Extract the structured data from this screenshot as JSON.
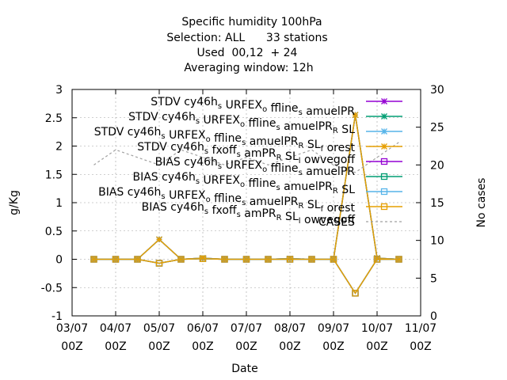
{
  "chart_data": {
    "type": "line",
    "title_lines": [
      "Specific humidity 100hPa",
      "Selection: ALL      33 stations",
      "Used  00,12  + 24",
      "Averaging window: 12h"
    ],
    "xlabel": "Date",
    "ylabel": "g/Kg",
    "y2label": "No cases",
    "ylim": [
      -1,
      3
    ],
    "y2lim": [
      0,
      30
    ],
    "grid": true,
    "legend_position": "top-right",
    "x_ticks": [
      {
        "pos": 0,
        "line1": "03/07",
        "line2": "00Z"
      },
      {
        "pos": 1,
        "line1": "04/07",
        "line2": "00Z"
      },
      {
        "pos": 2,
        "line1": "05/07",
        "line2": "00Z"
      },
      {
        "pos": 3,
        "line1": "06/07",
        "line2": "00Z"
      },
      {
        "pos": 4,
        "line1": "07/07",
        "line2": "00Z"
      },
      {
        "pos": 5,
        "line1": "08/07",
        "line2": "00Z"
      },
      {
        "pos": 6,
        "line1": "09/07",
        "line2": "00Z"
      },
      {
        "pos": 7,
        "line1": "10/07",
        "line2": "00Z"
      },
      {
        "pos": 8,
        "line1": "11/07",
        "line2": "00Z"
      }
    ],
    "y_ticks": [
      {
        "value": -1,
        "label": "-1"
      },
      {
        "value": -0.5,
        "label": "-0.5"
      },
      {
        "value": 0,
        "label": "0"
      },
      {
        "value": 0.5,
        "label": "0.5"
      },
      {
        "value": 1,
        "label": "1"
      },
      {
        "value": 1.5,
        "label": "1.5"
      },
      {
        "value": 2,
        "label": "2"
      },
      {
        "value": 2.5,
        "label": "2.5"
      },
      {
        "value": 3,
        "label": "3"
      }
    ],
    "y2_ticks": [
      {
        "value": 0,
        "label": "0"
      },
      {
        "value": 5,
        "label": "5"
      },
      {
        "value": 10,
        "label": "10"
      },
      {
        "value": 15,
        "label": "15"
      },
      {
        "value": 20,
        "label": "20"
      },
      {
        "value": 25,
        "label": "25"
      },
      {
        "value": 30,
        "label": "30"
      }
    ],
    "x": [
      0.5,
      1.0,
      1.5,
      2.0,
      2.5,
      3.0,
      3.5,
      4.0,
      4.5,
      5.0,
      5.5,
      6.0,
      6.5,
      7.0,
      7.5
    ],
    "series": [
      {
        "name": "STDV cy46h_s URFEX_o ffline_s amuelPR",
        "color": "#9400d3",
        "marker": "x-star",
        "axis": "y",
        "values": [
          0,
          0,
          0,
          0.35,
          0,
          0.02,
          0,
          0,
          0,
          0.01,
          0,
          0,
          2.55,
          0.02,
          0
        ]
      },
      {
        "name": "STDV cy46h_s URFEX_o ffline_s amuelPR_R SL",
        "color": "#009e73",
        "marker": "x-star",
        "axis": "y",
        "values": [
          0,
          0,
          0,
          0.35,
          0,
          0.02,
          0,
          0,
          0,
          0.01,
          0,
          0,
          2.55,
          0.02,
          0
        ]
      },
      {
        "name": "STDV cy46h_s URFEX_o ffline_s amuelPR_R SL_f orest",
        "color": "#56b4e9",
        "marker": "x-star",
        "axis": "y",
        "values": [
          0,
          0,
          0,
          0.35,
          0,
          0.02,
          0,
          0,
          0,
          0.01,
          0,
          0,
          2.55,
          0.02,
          0
        ]
      },
      {
        "name": "STDV cy46h_s fxoff_s amPR_R SL_l owvegoff",
        "color": "#e69f00",
        "marker": "x-star",
        "axis": "y",
        "values": [
          0,
          0,
          0,
          0.35,
          0,
          0.02,
          0,
          0,
          0,
          0.01,
          0,
          0,
          2.55,
          0.02,
          0
        ]
      },
      {
        "name": "BIAS cy46h_s URFEX_o ffline_s amuelPR",
        "color": "#9400d3",
        "marker": "square",
        "axis": "y",
        "values": [
          0,
          0,
          0,
          -0.07,
          0,
          0.01,
          0,
          0,
          0,
          0,
          0,
          0,
          -0.6,
          0,
          0
        ]
      },
      {
        "name": "BIAS cy46h_s URFEX_o ffline_s amuelPR_R SL",
        "color": "#009e73",
        "marker": "square",
        "axis": "y",
        "values": [
          0,
          0,
          0,
          -0.07,
          0,
          0.01,
          0,
          0,
          0,
          0,
          0,
          0,
          -0.6,
          0,
          0
        ]
      },
      {
        "name": "BIAS cy46h_s URFEX_o ffline_s amuelPR_R SL_f orest",
        "color": "#56b4e9",
        "marker": "square",
        "axis": "y",
        "values": [
          0,
          0,
          0,
          -0.07,
          0,
          0.01,
          0,
          0,
          0,
          0,
          0,
          0,
          -0.6,
          0,
          0
        ]
      },
      {
        "name": "BIAS cy46h_s fxoff_s amPR_R SL_l owvegoff",
        "color": "#e69f00",
        "marker": "square",
        "axis": "y",
        "values": [
          0,
          0,
          0,
          -0.07,
          0,
          0.01,
          0,
          0,
          0,
          0,
          0,
          0,
          -0.6,
          0,
          0
        ]
      },
      {
        "name": "CASES",
        "color": "#a0a0a0",
        "marker": "none",
        "dashed": true,
        "axis": "y2",
        "values": [
          20,
          22,
          21,
          20,
          22,
          21,
          20,
          21,
          20,
          21,
          22,
          20,
          19,
          21,
          23
        ]
      }
    ]
  }
}
